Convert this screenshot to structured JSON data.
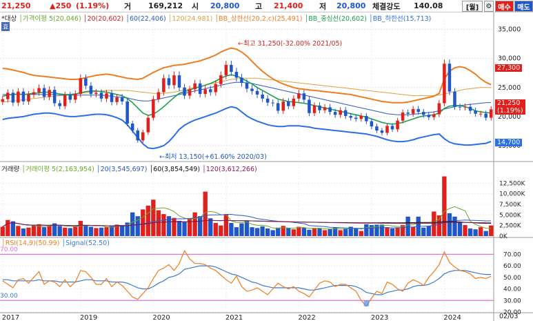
{
  "header": {
    "price": "21,250",
    "change": "▲250",
    "change_pct": "(1.19%)",
    "volume_label": "거",
    "volume": "169,212",
    "open_label": "시",
    "open": "20,800",
    "high_label": "고",
    "high": "21,400",
    "low_label": "저",
    "low": "20,800",
    "strength_label": "체결강도",
    "strength": "140.08",
    "period_button": "[월]",
    "settings_icon": "gear-icon",
    "buy_button": "매수",
    "sell_button": "매도"
  },
  "legend_price": {
    "target": "*대상",
    "disparity": "가격이평 5(20,046)",
    "ma20": "20(20,602)",
    "ma60": "60(22,406)",
    "ma120": "120(24,981)",
    "bb_upper": "BB_상한선(20,2,c)(25,491)",
    "bb_mid": "BB_중심선(20,602)",
    "bb_lower": "BB_하한선(15,713)",
    "hyo": "효"
  },
  "legend_volume": {
    "title": "거래량",
    "ma5": "거래이평 5(2,163,954)",
    "ma20": "20(3,545,697)",
    "ma60": "60(3,854,549)",
    "ma120": "120(3,612,266)"
  },
  "legend_rsi": {
    "rsi": "RSI(14,9)(50.99)",
    "signal": "Signal(52.50)"
  },
  "annotations": {
    "high": "최고 31,250(-32.00% 2021/05)",
    "low": "최저 13,150(+61.60% 2020/03)",
    "tag_upper": "27,300",
    "tag_price": "21,250",
    "tag_pct": "(1.19%)",
    "tag_lower": "14,700",
    "rsi_top_left": "70.00",
    "rsi_bottom_left": "30.00"
  },
  "axis": {
    "price_ticks": [
      "35,000",
      "30,000",
      "25,000",
      "20,000",
      "15,000"
    ],
    "volume_ticks": [
      "12,500K",
      "10,000K",
      "7,500K",
      "5,000K",
      "2,500K",
      "0K"
    ],
    "rsi_ticks": [
      "70.00",
      "60.00",
      "50.00",
      "40.00",
      "30.00",
      "20.00"
    ],
    "x_labels": [
      "2017",
      "2019",
      "2020",
      "2021",
      "2022",
      "2023",
      "2024"
    ],
    "date_label": "02/03"
  },
  "colors": {
    "up": "#e0201c",
    "down": "#1f56c9",
    "ma5": "#6aa82a",
    "ma20": "#d81e1e",
    "ma60": "#2b58c8",
    "ma120": "#e0a040",
    "bb_upper": "#f07c1e",
    "bb_mid": "#1ca04a",
    "bb_lower": "#2a6ee8",
    "rsi": "#f07c1e",
    "signal": "#3a78d8",
    "rsi_band": "#e070e0"
  },
  "chart_data": [
    {
      "type": "candlestick",
      "title": "",
      "ylim": [
        12500,
        36500
      ],
      "price_close": [
        23000,
        24100,
        22400,
        24300,
        22600,
        23800,
        24200,
        24900,
        23400,
        24600,
        22300,
        21800,
        23700,
        22900,
        23900,
        26600,
        25300,
        23900,
        24100,
        23100,
        24000,
        22500,
        23300,
        22600,
        18800,
        17600,
        15900,
        17300,
        19800,
        23000,
        24200,
        26600,
        25400,
        27100,
        25000,
        23600,
        24700,
        25700,
        23900,
        24700,
        24200,
        25600,
        27100,
        28900,
        27700,
        26700,
        25800,
        24800,
        24400,
        23800,
        23100,
        22400,
        22300,
        21000,
        22600,
        21800,
        23100,
        24000,
        22900,
        20600,
        21900,
        21100,
        21600,
        20800,
        20300,
        21100,
        20100,
        19800,
        19600,
        20100,
        19200,
        18300,
        17600,
        17200,
        18400,
        17800,
        19300,
        20700,
        20500,
        21300,
        20800,
        20300,
        19900,
        20400,
        22300,
        29100,
        24300,
        21700,
        21600,
        21700,
        21000,
        20500,
        20500,
        19800,
        21250
      ],
      "price_high_annotation": 31250,
      "price_low_annotation": 13150,
      "ma20": [
        23500,
        23700,
        23800,
        23900,
        23800,
        23900,
        24000,
        24100,
        24200,
        24200,
        24100,
        23900,
        23800,
        23800,
        23900,
        24100,
        24300,
        24400,
        24400,
        24300,
        24200,
        24000,
        23800,
        23600,
        23100,
        22400,
        21500,
        20600,
        20200,
        20400,
        21000,
        21700,
        22500,
        23300,
        24000,
        24300,
        24600,
        24900,
        25100,
        25400,
        25700,
        26100,
        26600,
        27000,
        27200,
        27000,
        26600,
        26100,
        25600,
        25000,
        24500,
        24000,
        23500,
        23000,
        22800,
        22600,
        22500,
        22400,
        22300,
        22100,
        21900,
        21700,
        21500,
        21300,
        21100,
        20900,
        20700,
        20500,
        20300,
        20100,
        19900,
        19600,
        19300,
        19000,
        18800,
        18700,
        18800,
        19000,
        19300,
        19600,
        19900,
        20100,
        20200,
        20300,
        20600,
        21400,
        21800,
        21900,
        21900,
        21700,
        21400,
        21000,
        20800,
        20700,
        20602
      ],
      "ma60": [
        23800,
        23800,
        23800,
        23800,
        23800,
        23800,
        23800,
        23800,
        23800,
        23800,
        23800,
        23700,
        23700,
        23700,
        23700,
        23700,
        23700,
        23700,
        23700,
        23700,
        23600,
        23500,
        23400,
        23300,
        23200,
        23000,
        22800,
        22700,
        22700,
        22800,
        23000,
        23200,
        23400,
        23600,
        23800,
        24000,
        24200,
        24400,
        24600,
        24800,
        25000,
        25200,
        25400,
        25600,
        25800,
        25900,
        25900,
        25800,
        25700,
        25500,
        25300,
        25100,
        24900,
        24700,
        24500,
        24300,
        24100,
        23900,
        23700,
        23500,
        23300,
        23100,
        22900,
        22700,
        22500,
        22300,
        22100,
        21900,
        21700,
        21500,
        21300,
        21100,
        20900,
        20700,
        20500,
        20400,
        20300,
        20300,
        20300,
        20400,
        20500,
        20600,
        20700,
        20800,
        21000,
        21300,
        21500,
        21700,
        21900,
        22000,
        22100,
        22200,
        22300,
        22400,
        22406
      ],
      "ma120": [
        22500,
        22600,
        22700,
        22800,
        22900,
        23000,
        23100,
        23200,
        23300,
        23400,
        23500,
        23600,
        23700,
        23800,
        23900,
        24000,
        24100,
        24200,
        24300,
        24400,
        24500,
        24500,
        24500,
        24500,
        24500,
        24400,
        24300,
        24200,
        24100,
        24000,
        24000,
        24000,
        24100,
        24200,
        24400,
        24600,
        24800,
        25000,
        25200,
        25400,
        25600,
        25800,
        26000,
        26200,
        26400,
        26500,
        26600,
        26600,
        26600,
        26600,
        26500,
        26400,
        26300,
        26200,
        26100,
        26000,
        25900,
        25800,
        25700,
        25600,
        25500,
        25400,
        25300,
        25200,
        25100,
        25000,
        24900,
        24800,
        24700,
        24600,
        24500,
        24400,
        24300,
        24200,
        24100,
        24000,
        23900,
        23800,
        23700,
        23600,
        23600,
        23600,
        23600,
        23600,
        23700,
        23900,
        24100,
        24300,
        24500,
        24700,
        24800,
        24900,
        25000,
        25000,
        24981
      ],
      "bb_upper": [
        28300,
        28200,
        28000,
        27800,
        27600,
        27300,
        27100,
        27000,
        26900,
        26800,
        26700,
        26600,
        26500,
        26400,
        26400,
        26500,
        26700,
        26900,
        27100,
        27200,
        27300,
        27200,
        27000,
        26800,
        26600,
        26500,
        26400,
        26600,
        27100,
        27600,
        28000,
        28400,
        28600,
        28800,
        28900,
        29000,
        29200,
        29400,
        29600,
        29900,
        30200,
        30600,
        31100,
        31500,
        31800,
        31600,
        31100,
        30400,
        29500,
        28600,
        27800,
        27100,
        26500,
        26000,
        25600,
        25300,
        25000,
        24800,
        24700,
        24600,
        24500,
        24400,
        24300,
        24200,
        24100,
        24000,
        23900,
        23800,
        23600,
        23400,
        23200,
        23000,
        22800,
        22600,
        22500,
        22400,
        22400,
        22400,
        22500,
        22700,
        22900,
        23100,
        23300,
        23500,
        24000,
        26500,
        27800,
        28400,
        28600,
        28400,
        27900,
        27300,
        26500,
        25900,
        25491
      ],
      "bb_lower": [
        19500,
        19700,
        19800,
        19900,
        20000,
        20200,
        20400,
        20500,
        20600,
        20600,
        20500,
        20300,
        20100,
        20000,
        20000,
        20100,
        20200,
        20300,
        20400,
        20400,
        20300,
        20100,
        19800,
        19400,
        18600,
        17500,
        16400,
        15300,
        14600,
        14500,
        14700,
        15000,
        15700,
        16700,
        17800,
        18500,
        19000,
        19400,
        19700,
        20000,
        20300,
        20600,
        21000,
        21400,
        21700,
        21500,
        20800,
        20100,
        19600,
        19200,
        18900,
        18600,
        18400,
        18300,
        18300,
        18400,
        18400,
        18400,
        18300,
        18200,
        18000,
        17900,
        17800,
        17700,
        17600,
        17500,
        17400,
        17300,
        17200,
        17100,
        17000,
        16800,
        16600,
        16300,
        16000,
        15800,
        15700,
        15700,
        15800,
        16000,
        16300,
        16500,
        16700,
        16900,
        17000,
        16200,
        15600,
        15300,
        15200,
        15100,
        15100,
        15200,
        15300,
        15400,
        15713
      ]
    },
    {
      "type": "bar",
      "title": "",
      "ylim": [
        0,
        15000000
      ],
      "volume": [
        2200000,
        3800000,
        3500000,
        2400000,
        1800000,
        2000000,
        2500000,
        2800000,
        2100000,
        2400000,
        3000000,
        2400000,
        2000000,
        1900000,
        2200000,
        3600000,
        2600000,
        2200000,
        1900000,
        2000000,
        2100000,
        2500000,
        2700000,
        2600000,
        3200000,
        5600000,
        4700000,
        6300000,
        7200000,
        8600000,
        6100000,
        5200000,
        4700000,
        4300000,
        3600000,
        3400000,
        4100000,
        5600000,
        4700000,
        10500000,
        4200000,
        3100000,
        2500000,
        5100000,
        3100000,
        2100000,
        3000000,
        3600000,
        2100000,
        1900000,
        2300000,
        1800000,
        1400000,
        2000000,
        2400000,
        1900000,
        1600000,
        2200000,
        2000000,
        1500000,
        1900000,
        1800000,
        1400000,
        1700000,
        2000000,
        1400000,
        1800000,
        2200000,
        1800000,
        1200000,
        2800000,
        2600000,
        2700000,
        2700000,
        2100000,
        1800000,
        2000000,
        2600000,
        4600000,
        2200000,
        4600000,
        2000000,
        2400000,
        5800000,
        4900000,
        14100000,
        5400000,
        4600000,
        3200000,
        2600000,
        1800000,
        1600000,
        2100000,
        1200000,
        2500000
      ]
    },
    {
      "type": "line",
      "title": "",
      "ylim": [
        20,
        75
      ],
      "series": [
        {
          "name": "RSI(14,9)",
          "values": [
            47,
            44,
            41,
            48,
            49,
            45,
            50,
            55,
            44,
            47,
            46,
            42,
            48,
            42,
            46,
            56,
            55,
            50,
            44,
            44,
            49,
            42,
            46,
            43,
            38,
            33,
            31,
            36,
            41,
            49,
            56,
            58,
            61,
            56,
            62,
            73,
            66,
            62,
            62,
            61,
            58,
            56,
            52,
            48,
            45,
            51,
            42,
            38,
            39,
            41,
            38,
            35,
            40,
            45,
            42,
            40,
            42,
            38,
            36,
            33,
            39,
            45,
            47,
            46,
            42,
            44,
            44,
            41,
            38,
            30,
            25,
            32,
            38,
            36,
            46,
            44,
            40,
            38,
            45,
            48,
            46,
            43,
            50,
            55,
            61,
            72,
            63,
            59,
            56,
            55,
            53,
            49,
            50,
            49,
            50.99
          ]
        },
        {
          "name": "Signal",
          "values": [
            48,
            48,
            47,
            47,
            47,
            47,
            47,
            48,
            47,
            47,
            47,
            46,
            46,
            46,
            46,
            47,
            48,
            48,
            47,
            47,
            47,
            46,
            46,
            46,
            45,
            43,
            41,
            40,
            40,
            42,
            45,
            47,
            50,
            51,
            53,
            57,
            58,
            59,
            60,
            60,
            60,
            59,
            57,
            55,
            53,
            52,
            50,
            48,
            46,
            45,
            43,
            42,
            41,
            41,
            41,
            41,
            41,
            41,
            40,
            39,
            39,
            40,
            41,
            42,
            43,
            43,
            43,
            43,
            42,
            40,
            37,
            36,
            35,
            35,
            37,
            38,
            39,
            39,
            40,
            42,
            43,
            43,
            44,
            46,
            49,
            53,
            55,
            56,
            56,
            56,
            55,
            54,
            53,
            52.5,
            52.5
          ]
        }
      ]
    }
  ]
}
